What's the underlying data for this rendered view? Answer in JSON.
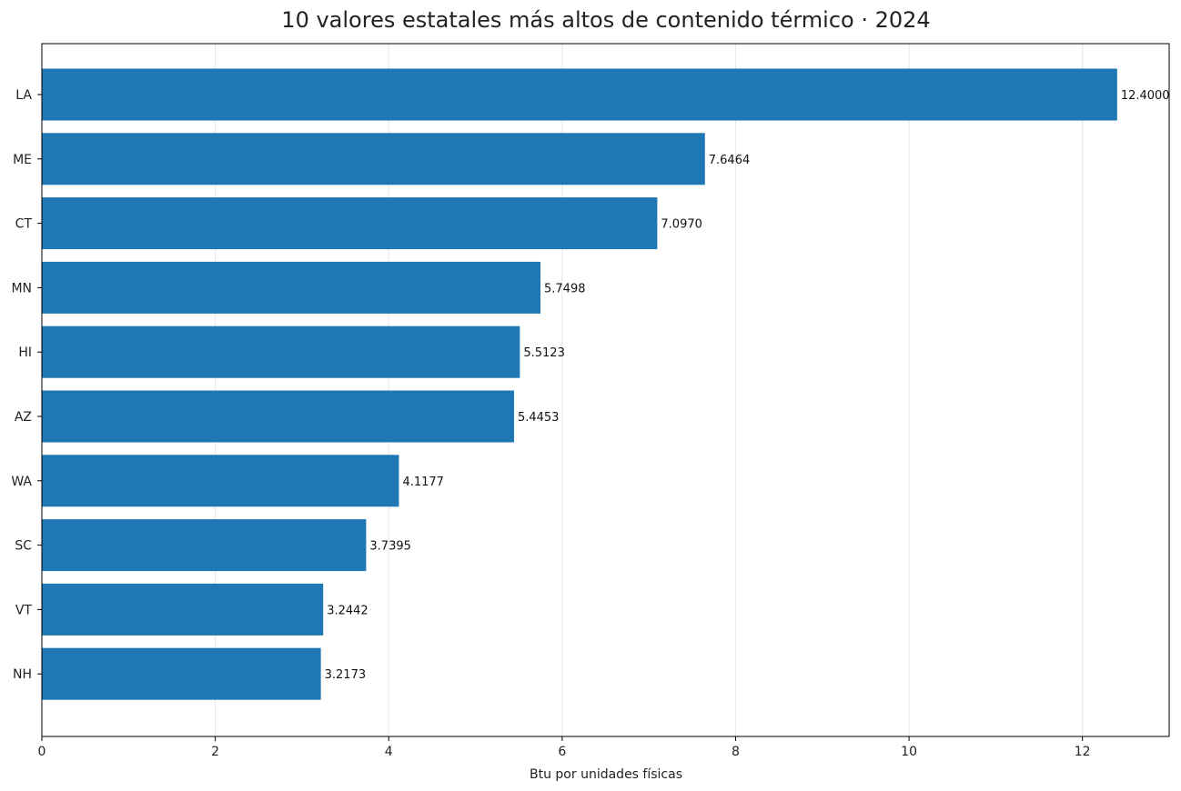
{
  "chart_data": {
    "type": "bar",
    "orientation": "horizontal",
    "title": "10 valores estatales más altos de contenido térmico · 2024",
    "xlabel": "Btu por unidades físicas",
    "ylabel": "",
    "categories": [
      "LA",
      "ME",
      "CT",
      "MN",
      "HI",
      "AZ",
      "WA",
      "SC",
      "VT",
      "NH"
    ],
    "values": [
      12.4,
      7.6464,
      7.097,
      5.7498,
      5.5123,
      5.4453,
      4.1177,
      3.7395,
      3.2442,
      3.2173
    ],
    "value_labels": [
      "12.4000",
      "7.6464",
      "7.0970",
      "5.7498",
      "5.5123",
      "5.4453",
      "4.1177",
      "3.7395",
      "3.2442",
      "3.2173"
    ],
    "xlim": [
      0,
      13
    ],
    "xticks": [
      0,
      2,
      4,
      6,
      8,
      10,
      12
    ],
    "xtick_labels": [
      "0",
      "2",
      "4",
      "6",
      "8",
      "10",
      "12"
    ],
    "grid": "x",
    "bar_color": "#1f77b4"
  }
}
